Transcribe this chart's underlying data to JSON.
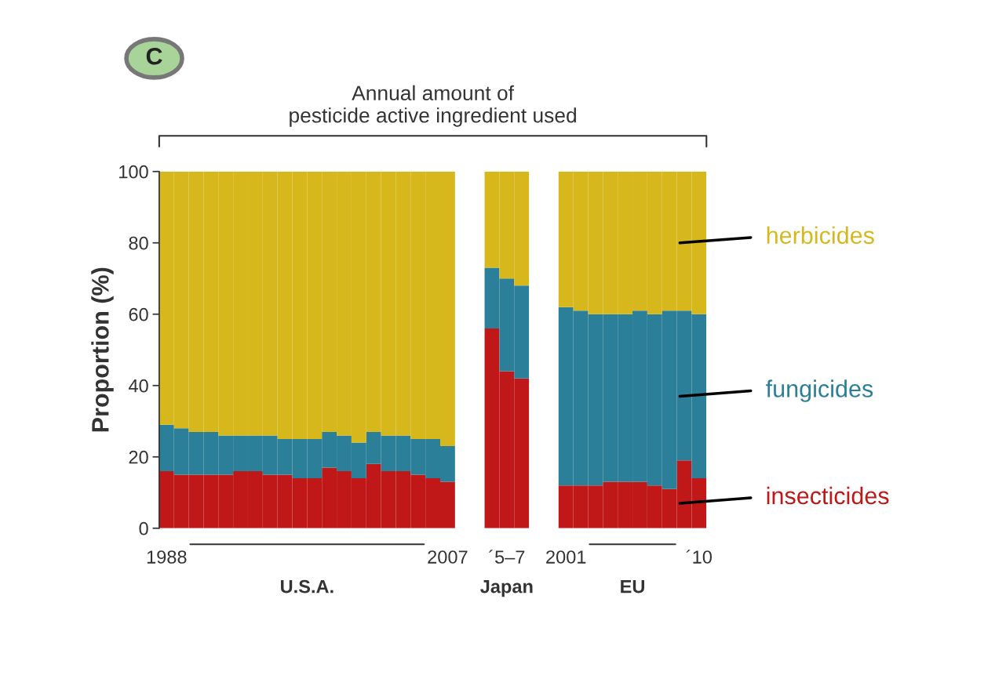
{
  "chart_data": {
    "type": "bar",
    "stacked": true,
    "title": "Annual amount of\npesticide active ingredient used",
    "ylabel": "Proportion (%)",
    "categories": [
      "1988",
      null,
      null,
      null,
      null,
      null,
      null,
      null,
      null,
      null,
      null,
      null,
      null,
      null,
      null,
      null,
      null,
      null,
      null,
      "2007",
      null,
      null,
      null,
      "´5–7",
      null,
      null,
      null,
      "2001",
      null,
      null,
      null,
      null,
      null,
      null,
      null,
      null,
      "´10"
    ],
    "series": [
      {
        "name": "insecticides",
        "color": "#c01818",
        "values": [
          16,
          15,
          15,
          15,
          15,
          16,
          16,
          15,
          15,
          14,
          14,
          17,
          16,
          14,
          18,
          16,
          16,
          15,
          14,
          13,
          null,
          null,
          56,
          44,
          42,
          null,
          null,
          12,
          12,
          12,
          13,
          13,
          13,
          12,
          11,
          19,
          14
        ]
      },
      {
        "name": "fungicides",
        "color": "#2b7f98",
        "values": [
          13,
          13,
          12,
          12,
          11,
          10,
          10,
          11,
          10,
          11,
          11,
          10,
          10,
          10,
          9,
          10,
          10,
          10,
          11,
          10,
          null,
          null,
          17,
          26,
          26,
          null,
          null,
          50,
          49,
          48,
          47,
          47,
          48,
          48,
          50,
          42,
          46
        ]
      },
      {
        "name": "herbicides",
        "color": "#d6b81c",
        "values": [
          71,
          72,
          73,
          73,
          74,
          74,
          74,
          74,
          75,
          75,
          75,
          73,
          74,
          76,
          73,
          74,
          74,
          75,
          75,
          77,
          null,
          null,
          27,
          30,
          32,
          null,
          null,
          38,
          39,
          40,
          40,
          40,
          39,
          40,
          39,
          39,
          40
        ]
      }
    ],
    "ylim": [
      0,
      100
    ],
    "yticks": [
      0,
      20,
      40,
      60,
      80,
      100
    ],
    "grid": false,
    "legend": "right",
    "annotations": [
      "U.S.A.",
      "Japan",
      "EU",
      "C"
    ]
  }
}
